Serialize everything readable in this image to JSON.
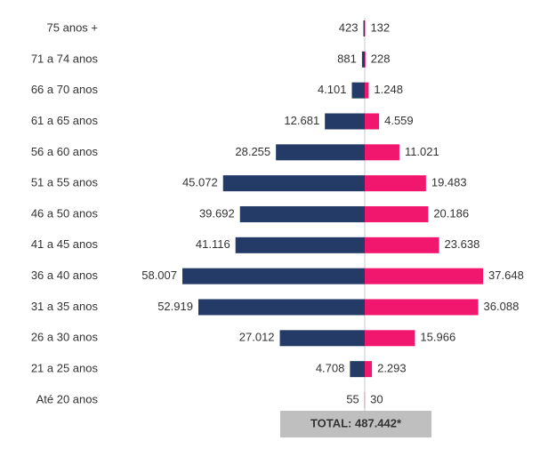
{
  "chart_data": {
    "type": "pyramid",
    "categories": [
      "75 anos +",
      "71 a 74 anos",
      "66 a 70 anos",
      "61 a 65 anos",
      "56 a 60 anos",
      "51 a 55 anos",
      "46 a 50 anos",
      "41 a 45 anos",
      "36 a 40 anos",
      "31 a 35 anos",
      "26 a 30 anos",
      "21 a 25 anos",
      "Até 20 anos"
    ],
    "series": [
      {
        "color": "#243b67",
        "values": [
          423,
          881,
          4101,
          12681,
          28255,
          45072,
          39692,
          41116,
          58007,
          52919,
          27012,
          4708,
          55
        ],
        "value_labels": [
          "423",
          "881",
          "4.101",
          "12.681",
          "28.255",
          "45.072",
          "39.692",
          "41.116",
          "58.007",
          "52.919",
          "27.012",
          "4.708",
          "55"
        ]
      },
      {
        "color": "#f2176e",
        "values": [
          132,
          228,
          1248,
          4559,
          11021,
          19483,
          20186,
          23638,
          37648,
          36088,
          15966,
          2293,
          30
        ],
        "value_labels": [
          "132",
          "228",
          "1.248",
          "4.559",
          "11.021",
          "19.483",
          "20.186",
          "23.638",
          "37.648",
          "36.088",
          "15.966",
          "2.293",
          "30"
        ]
      }
    ],
    "annotation": "TOTAL: 487.442*"
  }
}
